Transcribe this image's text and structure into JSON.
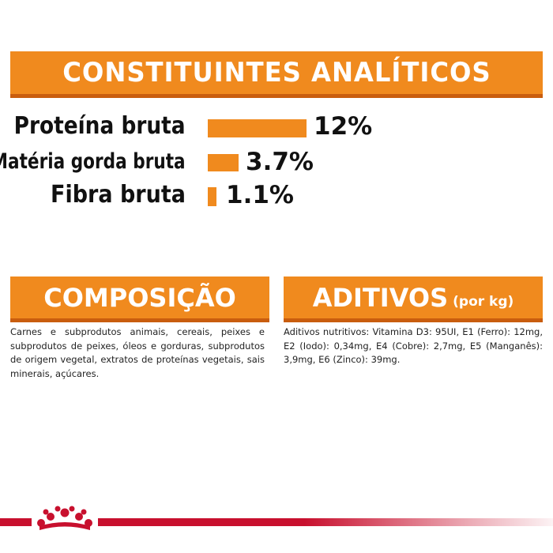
{
  "analytic": {
    "title": "CONSTITUINTES ANALÍTICOS",
    "rows": [
      {
        "label": "Proteína bruta",
        "value": "12%",
        "percent": 12
      },
      {
        "label": "Matéria gorda bruta",
        "value": "3.7%",
        "percent": 3.7
      },
      {
        "label": "Fibra bruta",
        "value": "1.1%",
        "percent": 1.1
      }
    ]
  },
  "composition": {
    "title": "COMPOSIÇÃO",
    "text": "Carnes e subprodutos animais, cereais, peixes e subprodutos de peixes, óleos e gorduras, subprodutos de origem vegetal, extratos de proteínas vegetais, sais minerais, açúcares."
  },
  "additives": {
    "title": "ADITIVOS",
    "title_suffix": "(por kg)",
    "text": "Aditivos nutritivos: Vitamina D3: 95UI, E1 (Ferro): 12mg, E2 (Iodo): 0,34mg, E4 (Cobre): 2,7mg, E5 (Manganês): 3,9mg, E6 (Zinco): 39mg."
  },
  "colors": {
    "accent": "#f08a1e",
    "accent_dark": "#c95d0e",
    "brand_red": "#c8102e"
  },
  "icons": {
    "footer": "crown-logo-icon"
  }
}
